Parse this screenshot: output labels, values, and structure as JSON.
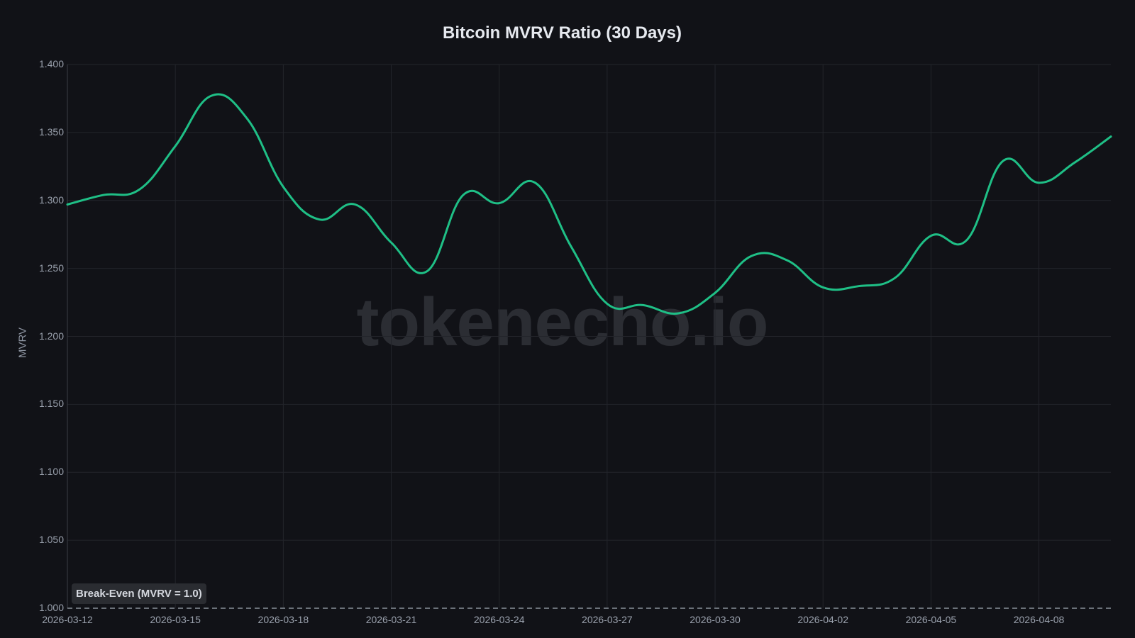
{
  "chart_data": {
    "type": "line",
    "title": "Bitcoin MVRV Ratio (30 Days)",
    "xlabel": "",
    "ylabel": "MVRV",
    "ylim": [
      1.0,
      1.4
    ],
    "yticks": [
      "1.000",
      "1.050",
      "1.100",
      "1.150",
      "1.200",
      "1.250",
      "1.300",
      "1.350",
      "1.400"
    ],
    "xticks": [
      "2026-03-12",
      "2026-03-15",
      "2026-03-18",
      "2026-03-21",
      "2026-03-24",
      "2026-03-27",
      "2026-03-30",
      "2026-04-02",
      "2026-04-05",
      "2026-04-08"
    ],
    "grid": true,
    "series": [
      {
        "name": "MVRV",
        "color": "#1fbf86",
        "x": [
          "2026-03-12",
          "2026-03-13",
          "2026-03-14",
          "2026-03-15",
          "2026-03-16",
          "2026-03-17",
          "2026-03-18",
          "2026-03-19",
          "2026-03-20",
          "2026-03-21",
          "2026-03-22",
          "2026-03-23",
          "2026-03-24",
          "2026-03-25",
          "2026-03-26",
          "2026-03-27",
          "2026-03-28",
          "2026-03-29",
          "2026-03-30",
          "2026-03-31",
          "2026-04-01",
          "2026-04-02",
          "2026-04-03",
          "2026-04-04",
          "2026-04-05",
          "2026-04-06",
          "2026-04-07",
          "2026-04-08",
          "2026-04-09",
          "2026-04-10"
        ],
        "values": [
          1.297,
          1.304,
          1.308,
          1.34,
          1.377,
          1.36,
          1.31,
          1.286,
          1.297,
          1.269,
          1.248,
          1.304,
          1.298,
          1.313,
          1.266,
          1.224,
          1.223,
          1.217,
          1.232,
          1.259,
          1.256,
          1.236,
          1.237,
          1.243,
          1.274,
          1.271,
          1.329,
          1.313,
          1.328,
          1.347
        ]
      }
    ],
    "annotations": [
      {
        "type": "hline",
        "y": 1.0,
        "style": "dashed",
        "color": "#8a919c",
        "label": "Break-Even (MVRV = 1.0)"
      }
    ],
    "watermark": "tokenecho.io"
  }
}
